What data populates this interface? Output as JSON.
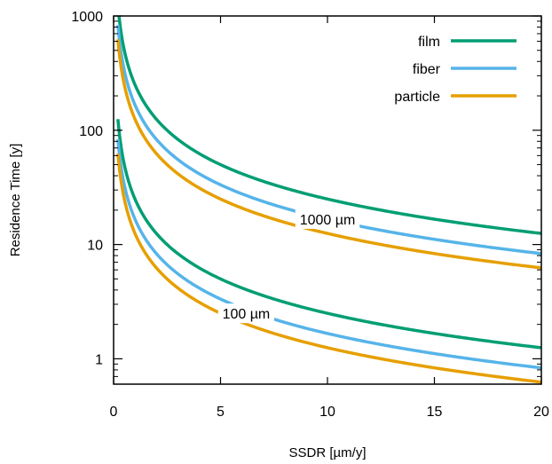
{
  "chart_data": {
    "type": "line",
    "xlabel": "SSDR [µm/y]",
    "ylabel": "Residence Time [y]",
    "xlim": [
      0,
      20
    ],
    "ylim": [
      0.6,
      1000
    ],
    "yscale": "log",
    "grid": false,
    "legend_position": "top-right",
    "x_ticks": [
      {
        "value": 0,
        "label": "0"
      },
      {
        "value": 5,
        "label": "5"
      },
      {
        "value": 10,
        "label": "10"
      },
      {
        "value": 15,
        "label": "15"
      },
      {
        "value": 20,
        "label": "20"
      }
    ],
    "y_ticks": [
      {
        "value": 1,
        "label": "1"
      },
      {
        "value": 10,
        "label": "10"
      },
      {
        "value": 100,
        "label": "100"
      },
      {
        "value": 1000,
        "label": "1000"
      }
    ],
    "series": [
      {
        "name": "film",
        "color": "#009e73",
        "group": "1000 µm",
        "x": [
          0.25,
          0.5,
          1,
          2,
          3,
          5,
          7.5,
          10,
          12.5,
          15,
          17.5,
          20
        ],
        "y": [
          1000,
          500,
          250,
          125,
          83.3,
          50,
          33.3,
          25,
          20,
          16.7,
          14.3,
          12.5
        ]
      },
      {
        "name": "fiber",
        "color": "#56b4e9",
        "group": "1000 µm",
        "x": [
          0.2,
          0.5,
          1,
          2,
          3,
          5,
          7.5,
          10,
          12.5,
          15,
          17.5,
          20
        ],
        "y": [
          833,
          333,
          167,
          83.3,
          55.6,
          33.3,
          22.2,
          16.7,
          13.3,
          11.1,
          9.5,
          8.33
        ]
      },
      {
        "name": "particle",
        "color": "#e69f00",
        "group": "1000 µm",
        "x": [
          0.2,
          0.5,
          1,
          2,
          3,
          5,
          7.5,
          10,
          12.5,
          15,
          17.5,
          20
        ],
        "y": [
          625,
          250,
          125,
          62.5,
          41.7,
          25,
          16.7,
          12.5,
          10,
          8.33,
          7.14,
          6.25
        ]
      },
      {
        "name": "film",
        "color": "#009e73",
        "group": "100 µm",
        "x": [
          0.2,
          0.5,
          1,
          2,
          3,
          5,
          7.5,
          10,
          12.5,
          15,
          17.5,
          20
        ],
        "y": [
          125,
          50,
          25,
          12.5,
          8.33,
          5,
          3.33,
          2.5,
          2,
          1.67,
          1.43,
          1.25
        ]
      },
      {
        "name": "fiber",
        "color": "#56b4e9",
        "group": "100 µm",
        "x": [
          0.2,
          0.5,
          1,
          2,
          3,
          5,
          7.5,
          10,
          12.5,
          15,
          17.5,
          20
        ],
        "y": [
          83.3,
          33.3,
          16.7,
          8.33,
          5.56,
          3.33,
          2.22,
          1.67,
          1.33,
          1.11,
          0.95,
          0.833
        ]
      },
      {
        "name": "particle",
        "color": "#e69f00",
        "group": "100 µm",
        "x": [
          0.2,
          0.5,
          1,
          2,
          3,
          5,
          7.5,
          10,
          12.5,
          15,
          17.5,
          20
        ],
        "y": [
          62.5,
          25,
          12.5,
          6.25,
          4.17,
          2.5,
          1.67,
          1.25,
          1,
          0.833,
          0.714,
          0.625
        ]
      }
    ],
    "legend": [
      {
        "label": "film",
        "color": "#009e73"
      },
      {
        "label": "fiber",
        "color": "#56b4e9"
      },
      {
        "label": "particle",
        "color": "#e69f00"
      }
    ],
    "annotations": [
      {
        "text": "1000 µm",
        "x": 10,
        "y": 16.7
      },
      {
        "text": "100 µm",
        "x": 6.2,
        "y": 2.5
      }
    ]
  }
}
